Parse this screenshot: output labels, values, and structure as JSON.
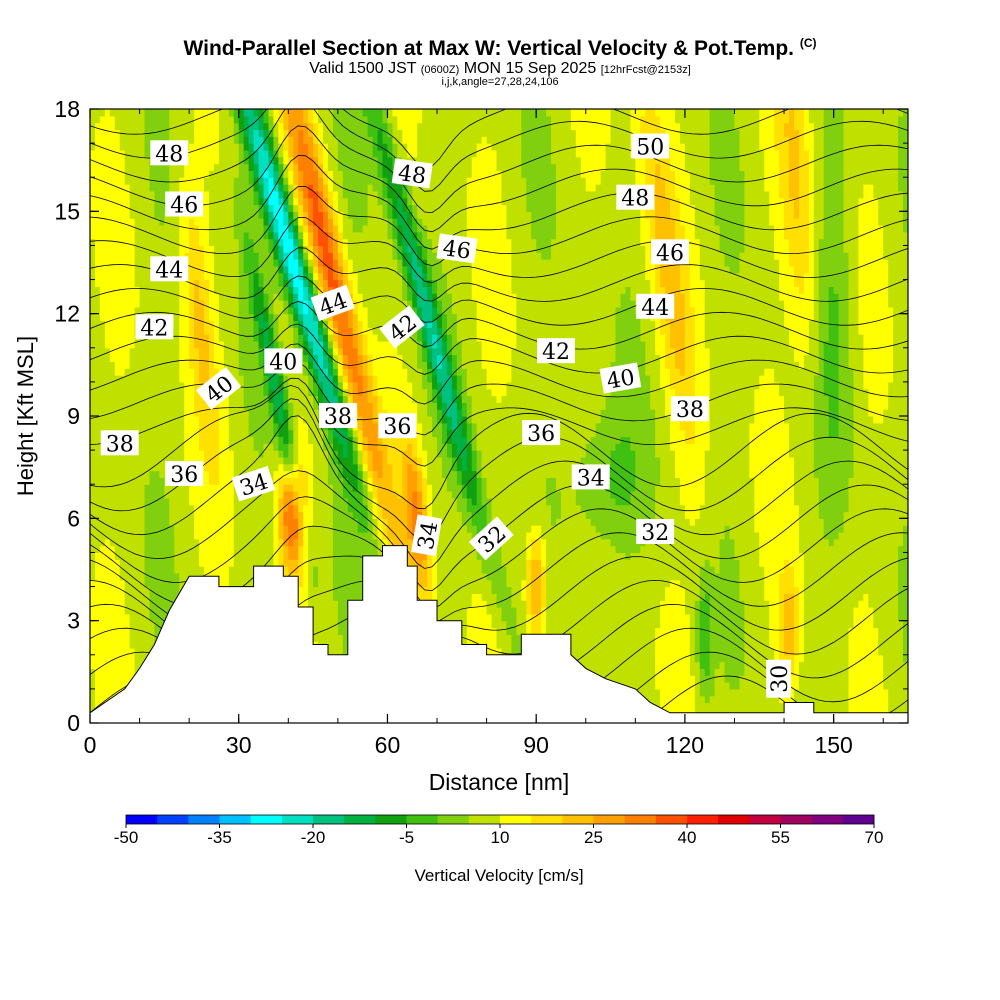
{
  "title": {
    "main": "Wind-Parallel Section at Max W: Vertical Velocity & Pot.Temp.",
    "main_tag": "(C)",
    "valid_prefix": "Valid 1500 JST",
    "valid_z": "(0600Z)",
    "valid_suffix": "MON 15 Sep 2025",
    "forecast_tag": "[12hrFcst@2153z]",
    "subinfo": "i,j,k,angle=27,28,24,106"
  },
  "chart_data": {
    "type": "heatmap",
    "xlabel": "Distance [nm]",
    "ylabel": "Height [Kft MSL]",
    "xlim": [
      0,
      165
    ],
    "ylim": [
      0,
      18
    ],
    "xticks": [
      0,
      30,
      60,
      90,
      120,
      150
    ],
    "yticks": [
      0,
      3,
      6,
      9,
      12,
      15,
      18
    ],
    "colorbar": {
      "label": "Vertical Velocity [cm/s]",
      "tick_labels": [
        "-50",
        "-35",
        "-20",
        "-5",
        "10",
        "25",
        "40",
        "55",
        "70"
      ],
      "colors": [
        "#0000ff",
        "#0040ff",
        "#0080ff",
        "#00c0ff",
        "#00ffff",
        "#00e0c0",
        "#00c080",
        "#00b040",
        "#10a010",
        "#40c010",
        "#80d010",
        "#c0e000",
        "#ffff00",
        "#ffe000",
        "#ffc000",
        "#ffa000",
        "#ff8000",
        "#ff5000",
        "#ff2000",
        "#e00000",
        "#c00040",
        "#a00060",
        "#800080",
        "#600090"
      ]
    },
    "terrain": [
      [
        0,
        0.3
      ],
      [
        3,
        0.6
      ],
      [
        7,
        1.0
      ],
      [
        10,
        1.6
      ],
      [
        13,
        2.3
      ],
      [
        16,
        3.3
      ],
      [
        20,
        4.3
      ],
      [
        26,
        4.3
      ],
      [
        26,
        4.0
      ],
      [
        33,
        4.0
      ],
      [
        33,
        4.6
      ],
      [
        39,
        4.6
      ],
      [
        39,
        4.3
      ],
      [
        42,
        4.3
      ],
      [
        42,
        3.4
      ],
      [
        45,
        3.4
      ],
      [
        45,
        2.3
      ],
      [
        48,
        2.3
      ],
      [
        48,
        2.0
      ],
      [
        52,
        2.0
      ],
      [
        52,
        3.6
      ],
      [
        55,
        3.6
      ],
      [
        55,
        4.9
      ],
      [
        59,
        4.9
      ],
      [
        59,
        5.2
      ],
      [
        64,
        5.2
      ],
      [
        64,
        4.6
      ],
      [
        66,
        4.6
      ],
      [
        66,
        3.6
      ],
      [
        70,
        3.6
      ],
      [
        70,
        3.0
      ],
      [
        75,
        3.0
      ],
      [
        75,
        2.3
      ],
      [
        80,
        2.3
      ],
      [
        80,
        2.0
      ],
      [
        87,
        2.0
      ],
      [
        87,
        2.6
      ],
      [
        97,
        2.6
      ],
      [
        97,
        2.0
      ],
      [
        100,
        1.6
      ],
      [
        104,
        1.3
      ],
      [
        110,
        1.0
      ],
      [
        113,
        0.6
      ],
      [
        117,
        0.3
      ],
      [
        120,
        0.3
      ],
      [
        140,
        0.3
      ],
      [
        140,
        0.6
      ],
      [
        146,
        0.6
      ],
      [
        146,
        0.3
      ],
      [
        165,
        0.3
      ]
    ],
    "velocity_features": [
      {
        "x": 41,
        "y": 13.5,
        "sx": 2.2,
        "sy": 4.5,
        "slope": -0.9,
        "w": -40
      },
      {
        "x": 38,
        "y": 9.5,
        "sx": 1.3,
        "sy": 3.2,
        "slope": -0.6,
        "w": -20
      },
      {
        "x": 49,
        "y": 13,
        "sx": 2.4,
        "sy": 5.5,
        "slope": -0.7,
        "w": 28
      },
      {
        "x": 41,
        "y": 6.2,
        "sx": 2.0,
        "sy": 1.2,
        "slope": 0,
        "w": 30
      },
      {
        "x": 68,
        "y": 12,
        "sx": 1.8,
        "sy": 5.0,
        "slope": -0.8,
        "w": -25
      },
      {
        "x": 66,
        "y": 6,
        "sx": 1.6,
        "sy": 1.6,
        "slope": -0.3,
        "w": 22
      },
      {
        "x": 90,
        "y": 4,
        "sx": 1.5,
        "sy": 1.2,
        "slope": 0,
        "w": 22
      },
      {
        "x": 116,
        "y": 14,
        "sx": 2.5,
        "sy": 5.0,
        "slope": -0.4,
        "w": 12
      },
      {
        "x": 143,
        "y": 15,
        "sx": 2.5,
        "sy": 4.0,
        "slope": -0.2,
        "w": 12
      },
      {
        "x": 141,
        "y": 2.8,
        "sx": 1.5,
        "sy": 1.2,
        "slope": 0,
        "w": 14
      },
      {
        "x": 124,
        "y": 2.5,
        "sx": 1.2,
        "sy": 1.3,
        "slope": 0,
        "w": -12
      },
      {
        "x": 22,
        "y": 12,
        "sx": 2.0,
        "sy": 3.0,
        "slope": -0.3,
        "w": 12
      },
      {
        "x": 103,
        "y": 7,
        "sx": 6.0,
        "sy": 1.5,
        "slope": 0,
        "w": -10
      },
      {
        "x": 150,
        "y": 12,
        "sx": 3.0,
        "sy": 4.0,
        "slope": 0,
        "w": -8
      }
    ],
    "isentrope_labels": [
      {
        "text": "48",
        "x": 16,
        "y": 16.7,
        "rot": 0
      },
      {
        "text": "46",
        "x": 19,
        "y": 15.2,
        "rot": 0
      },
      {
        "text": "44",
        "x": 16,
        "y": 13.3,
        "rot": 0
      },
      {
        "text": "42",
        "x": 13,
        "y": 11.6,
        "rot": 0
      },
      {
        "text": "40",
        "x": 26,
        "y": 9.8,
        "rot": -38
      },
      {
        "text": "38",
        "x": 6,
        "y": 8.2,
        "rot": 0
      },
      {
        "text": "36",
        "x": 19,
        "y": 7.3,
        "rot": 0
      },
      {
        "text": "34",
        "x": 33,
        "y": 7.0,
        "rot": -18
      },
      {
        "text": "40",
        "x": 39,
        "y": 10.6,
        "rot": 0
      },
      {
        "text": "44",
        "x": 49,
        "y": 12.3,
        "rot": -20
      },
      {
        "text": "38",
        "x": 50,
        "y": 9.0,
        "rot": 0
      },
      {
        "text": "48",
        "x": 65,
        "y": 16.1,
        "rot": 8
      },
      {
        "text": "46",
        "x": 74,
        "y": 13.9,
        "rot": 8
      },
      {
        "text": "42",
        "x": 63,
        "y": 11.6,
        "rot": -38
      },
      {
        "text": "36",
        "x": 62,
        "y": 8.7,
        "rot": 0
      },
      {
        "text": "34",
        "x": 68,
        "y": 5.5,
        "rot": -80
      },
      {
        "text": "32",
        "x": 81,
        "y": 5.4,
        "rot": -42
      },
      {
        "text": "36",
        "x": 91,
        "y": 8.5,
        "rot": 0
      },
      {
        "text": "42",
        "x": 94,
        "y": 10.9,
        "rot": 0
      },
      {
        "text": "34",
        "x": 101,
        "y": 7.2,
        "rot": 0
      },
      {
        "text": "40",
        "x": 107,
        "y": 10.1,
        "rot": -10
      },
      {
        "text": "50",
        "x": 113,
        "y": 16.9,
        "rot": 0
      },
      {
        "text": "48",
        "x": 110,
        "y": 15.4,
        "rot": 0
      },
      {
        "text": "46",
        "x": 117,
        "y": 13.8,
        "rot": 0
      },
      {
        "text": "44",
        "x": 114,
        "y": 12.2,
        "rot": 0
      },
      {
        "text": "38",
        "x": 121,
        "y": 9.2,
        "rot": 0
      },
      {
        "text": "32",
        "x": 114,
        "y": 5.6,
        "rot": 0
      },
      {
        "text": "30",
        "x": 139,
        "y": 1.3,
        "rot": -90
      }
    ]
  }
}
